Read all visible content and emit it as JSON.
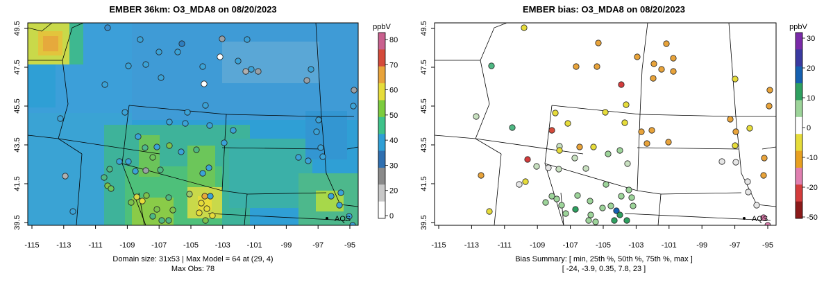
{
  "panels": [
    {
      "title": "EMBER 36km: O3_MDA8 on 08/20/2023",
      "footer": [
        "Domain size: 31x53 | Max Model = 64 at (29, 4)",
        "Max Obs: 78"
      ],
      "colorbar": {
        "unit": "ppbV",
        "ticks": [
          "0",
          "20",
          "30",
          "40",
          "50",
          "60",
          "70",
          "80"
        ],
        "colors": [
          "#ffffff",
          "#c8c8c8",
          "#8a8a8a",
          "#2e6fb0",
          "#2f9fd5",
          "#3ec28a",
          "#7ccc3e",
          "#e6dc3a",
          "#e8a33a",
          "#d44a3a",
          "#c9608e"
        ]
      },
      "label_point": "AQS"
    },
    {
      "title": "EMBER bias: O3_MDA8 on 08/20/2023",
      "footer": [
        "Bias Summary: [ min, 25th %, 50th %, 75th %, max ]",
        "[ -24,   -3.9,   0.35,   7.8,   23 ]"
      ],
      "colorbar": {
        "unit": "ppbV",
        "ticks": [
          "30",
          "20",
          "10",
          "0",
          "-10",
          "-20",
          "-50"
        ],
        "colors": [
          "#8b1a1a",
          "#d43c3c",
          "#e07fb0",
          "#e8a020",
          "#e6dc3a",
          "#ffffff",
          "#9dd49a",
          "#2ea060",
          "#1560b0",
          "#3a3aa0",
          "#7a2aa8"
        ]
      },
      "label_point": "AQS"
    }
  ],
  "axes": {
    "x_ticks": [
      "-115",
      "-113",
      "-111",
      "-109",
      "-107",
      "-105",
      "-103",
      "-101",
      "-99",
      "-97",
      "-95"
    ],
    "y_ticks": [
      "39.5",
      "41.5",
      "43.5",
      "45.5",
      "47.5",
      "49.5"
    ]
  }
}
